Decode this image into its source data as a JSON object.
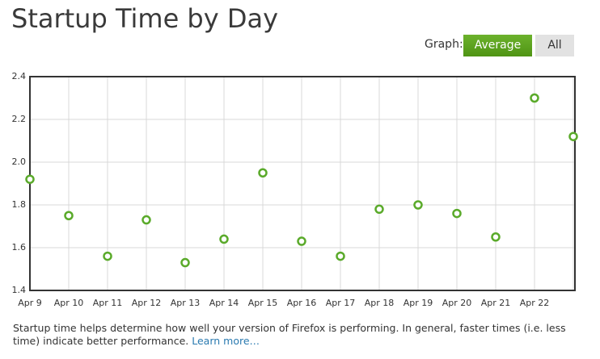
{
  "page_title": "Startup Time by Day",
  "graph_label": "Graph:",
  "buttons": [
    "Average",
    "All"
  ],
  "chart_data": {
    "type": "scatter",
    "categories": [
      "Apr 9",
      "Apr 10",
      "Apr 11",
      "Apr 12",
      "Apr 13",
      "Apr 14",
      "Apr 15",
      "Apr 16",
      "Apr 17",
      "Apr 18",
      "Apr 19",
      "Apr 20",
      "Apr 21",
      "Apr 22",
      null
    ],
    "values": [
      1.92,
      1.75,
      1.56,
      1.73,
      1.53,
      1.64,
      1.95,
      1.63,
      1.56,
      1.78,
      1.8,
      1.76,
      1.65,
      2.3,
      2.12
    ],
    "color": "#5aaa2a",
    "ylim": [
      1.4,
      2.4
    ],
    "yticks": [
      1.4,
      1.6,
      1.8,
      {
        "value": 2,
        "label": "2.0"
      },
      2.2,
      2.4
    ],
    "grid": true
  },
  "footer": {
    "text": "Startup time helps determine how well your version of Firefox is performing. In general, faster times (i.e. less time) indicate better performance.",
    "link": "Learn more…"
  }
}
